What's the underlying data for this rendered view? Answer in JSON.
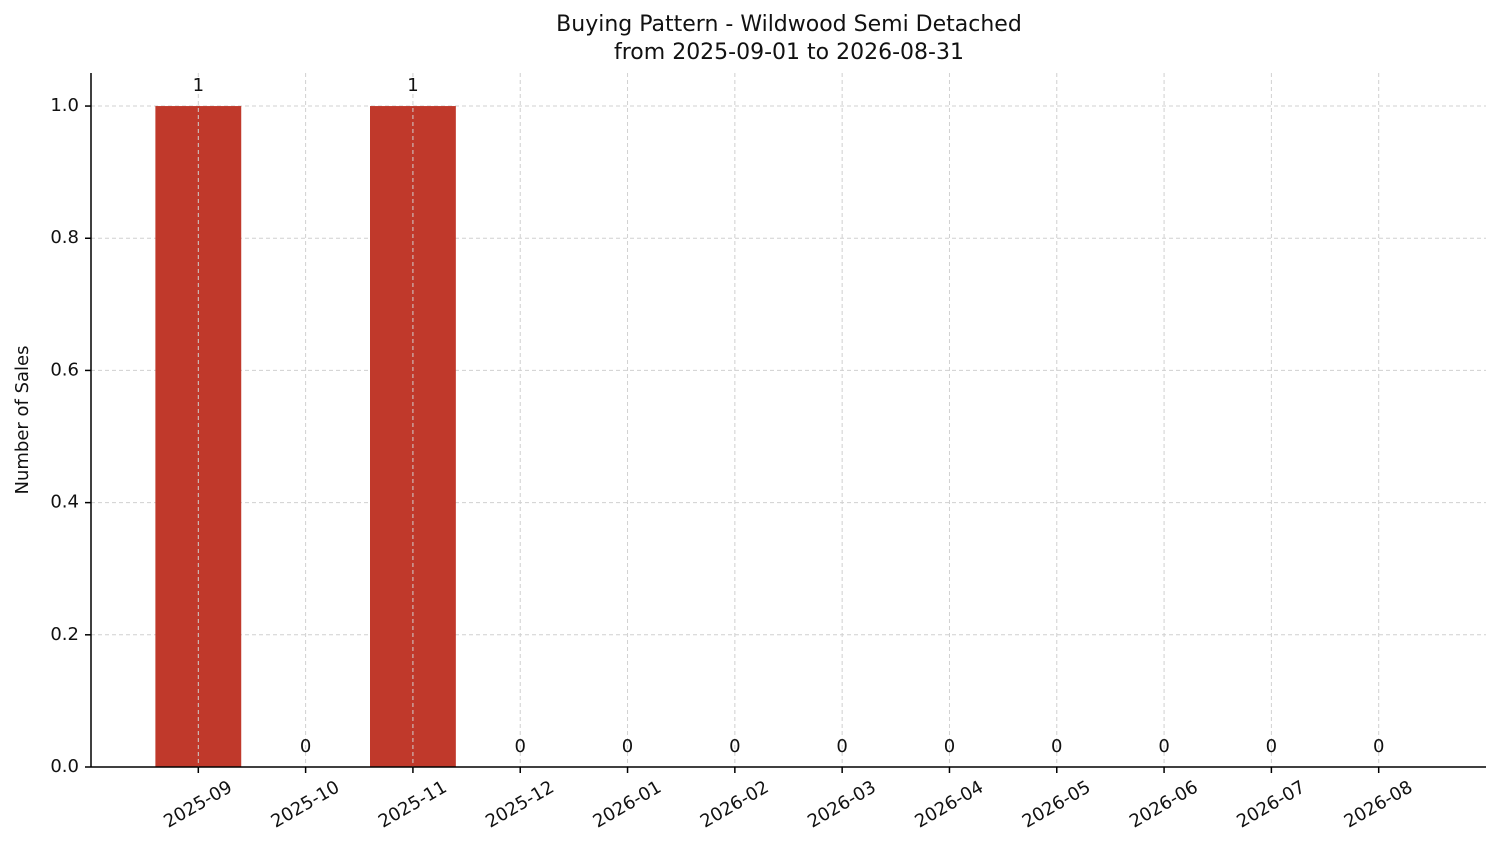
{
  "chart_data": {
    "type": "bar",
    "title": "Buying Pattern - Wildwood Semi Detached",
    "subtitle": "from 2025-09-01 to 2026-08-31",
    "y_label": "Number of Sales",
    "categories": [
      "2025-09",
      "2025-10",
      "2025-11",
      "2025-12",
      "2026-01",
      "2026-02",
      "2026-03",
      "2026-04",
      "2026-05",
      "2026-06",
      "2026-07",
      "2026-08"
    ],
    "values": [
      1,
      0,
      1,
      0,
      0,
      0,
      0,
      0,
      0,
      0,
      0,
      0
    ],
    "color": "#c0392b",
    "ylim": [
      0,
      1.05
    ],
    "yticks": [
      {
        "value": 0,
        "label": "0.0"
      },
      0.2,
      0.4,
      0.6,
      0.8,
      {
        "value": 1,
        "label": "1.0"
      }
    ],
    "grid": true
  }
}
